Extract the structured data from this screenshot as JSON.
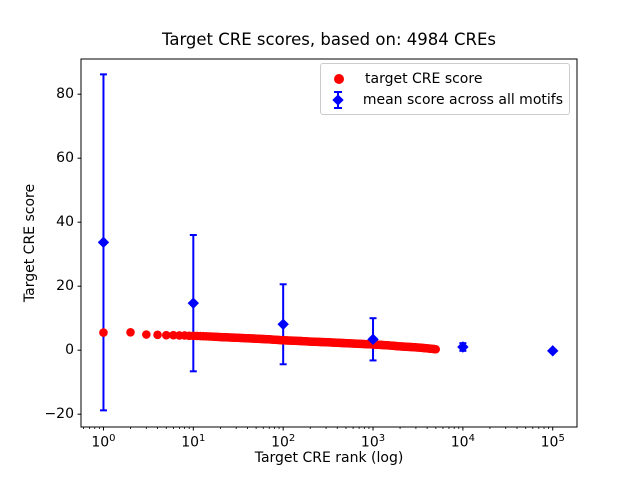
{
  "chart_data": {
    "type": "scatter",
    "title": "Target CRE scores, based on: 4984 CREs",
    "xlabel": "Target CRE rank (log)",
    "ylabel": "Target CRE score",
    "x_scale": "log",
    "grid": false,
    "legend_position": "upper right",
    "xlim_log10": [
      -0.25,
      5.27
    ],
    "ylim": [
      -24,
      91
    ],
    "x_major_ticks": [
      {
        "value": 1,
        "base": "10",
        "exp": "0"
      },
      {
        "value": 10,
        "base": "10",
        "exp": "1"
      },
      {
        "value": 100,
        "base": "10",
        "exp": "2"
      },
      {
        "value": 1000,
        "base": "10",
        "exp": "3"
      },
      {
        "value": 10000,
        "base": "10",
        "exp": "4"
      },
      {
        "value": 100000,
        "base": "10",
        "exp": "5"
      }
    ],
    "y_ticks": [
      {
        "value": -20,
        "label": "−20"
      },
      {
        "value": 0,
        "label": "0"
      },
      {
        "value": 20,
        "label": "20"
      },
      {
        "value": 40,
        "label": "40"
      },
      {
        "value": 60,
        "label": "60"
      },
      {
        "value": 80,
        "label": "80"
      }
    ],
    "series": [
      {
        "name": "target CRE score",
        "marker": "circle",
        "color": "#ff0000",
        "n_points": 4984,
        "x_range": [
          1,
          4984
        ],
        "note": "4984 points at integer ranks 1..4984; dense band approximated by these sampled control points",
        "sampled_points": [
          [
            1,
            5.5
          ],
          [
            2,
            5.6
          ],
          [
            3,
            4.9
          ],
          [
            4,
            4.8
          ],
          [
            5,
            4.7
          ],
          [
            6,
            4.7
          ],
          [
            7,
            4.6
          ],
          [
            8,
            4.6
          ],
          [
            9,
            4.5
          ],
          [
            10,
            4.5
          ],
          [
            15,
            4.3
          ],
          [
            20,
            4.1
          ],
          [
            30,
            3.9
          ],
          [
            50,
            3.6
          ],
          [
            70,
            3.4
          ],
          [
            100,
            3.1
          ],
          [
            150,
            2.9
          ],
          [
            200,
            2.7
          ],
          [
            300,
            2.5
          ],
          [
            500,
            2.2
          ],
          [
            700,
            2.0
          ],
          [
            1000,
            1.8
          ],
          [
            1500,
            1.5
          ],
          [
            2000,
            1.2
          ],
          [
            3000,
            0.9
          ],
          [
            4000,
            0.6
          ],
          [
            4984,
            0.3
          ]
        ]
      },
      {
        "name": "mean score across all motifs",
        "marker": "diamond",
        "color": "#0000ff",
        "x": [
          1,
          10,
          100,
          1000,
          10000,
          100000
        ],
        "y": [
          33.7,
          14.7,
          8.1,
          3.4,
          1.0,
          -0.2
        ],
        "yerr": [
          52.5,
          21.3,
          12.5,
          6.6,
          1.2,
          0.4
        ]
      }
    ]
  },
  "legend": {
    "entries": [
      {
        "label": "target CRE score",
        "marker": "circle",
        "color": "#ff0000"
      },
      {
        "label": "mean score across all motifs",
        "marker": "diamond-errorbar",
        "color": "#0000ff"
      }
    ]
  },
  "colors": {
    "red": "#ff0000",
    "blue": "#0000ff",
    "axis": "#000000",
    "background": "#ffffff",
    "legend_border": "#cccccc"
  }
}
